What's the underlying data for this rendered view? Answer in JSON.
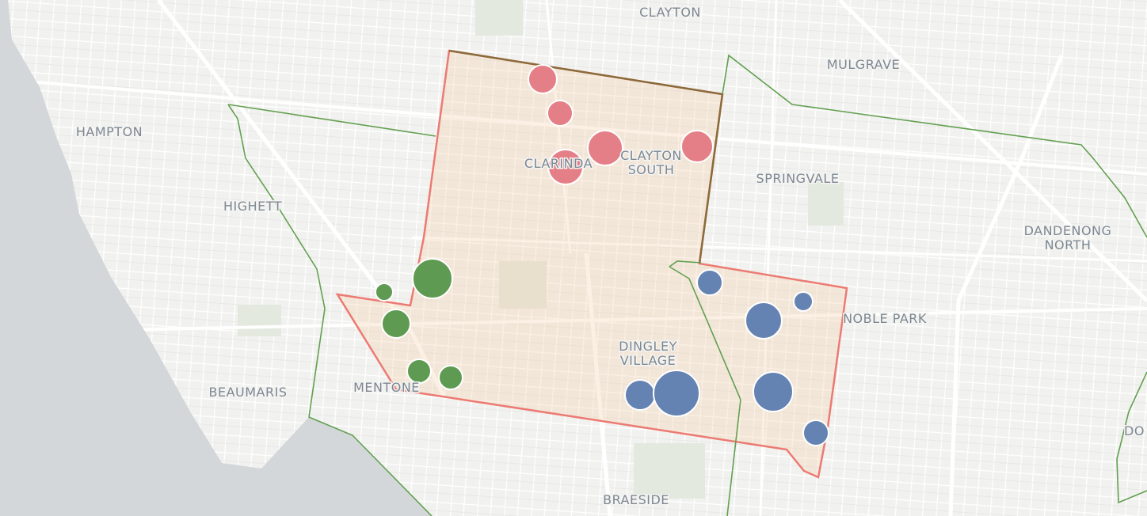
{
  "map": {
    "labels": [
      {
        "lines": [
          "CLAYTON"
        ]
      },
      {
        "lines": [
          "MULGRAVE"
        ]
      },
      {
        "lines": [
          "HAMPTON"
        ]
      },
      {
        "lines": [
          "HIGHETT"
        ]
      },
      {
        "lines": [
          "CLARINDA"
        ]
      },
      {
        "lines": [
          "CLAYTON",
          "SOUTH"
        ]
      },
      {
        "lines": [
          "SPRINGVALE"
        ]
      },
      {
        "lines": [
          "DANDENONG",
          "NORTH"
        ]
      },
      {
        "lines": [
          "NOBLE PARK"
        ]
      },
      {
        "lines": [
          "DINGLEY",
          "VILLAGE"
        ]
      },
      {
        "lines": [
          "BEAUMARIS"
        ]
      },
      {
        "lines": [
          "MENTONE"
        ]
      },
      {
        "lines": [
          "BRAESIDE"
        ]
      },
      {
        "lines": [
          "DO"
        ]
      }
    ]
  }
}
